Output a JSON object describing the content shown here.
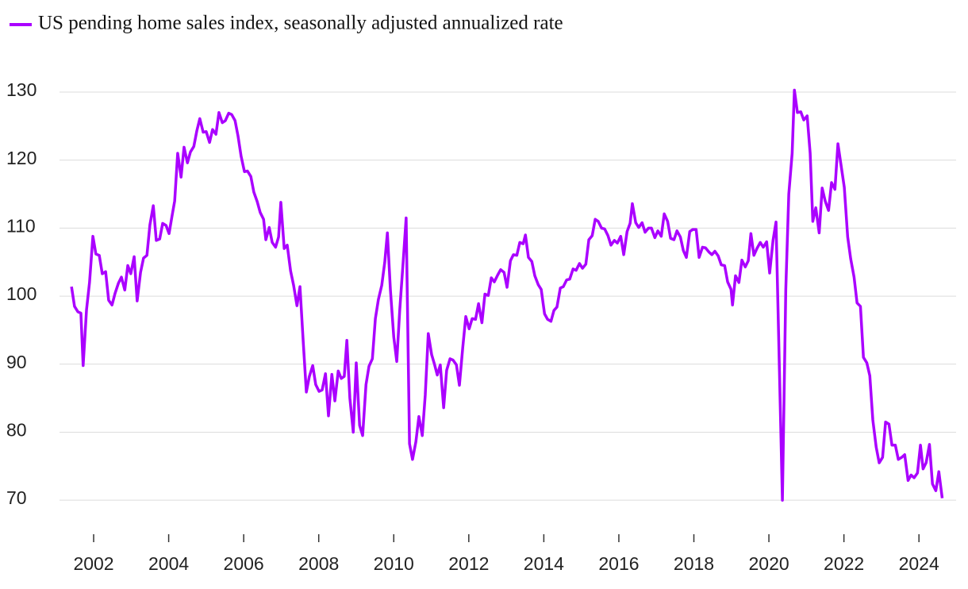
{
  "chart_data": {
    "type": "line",
    "xlim": [
      2001.09,
      2024.99
    ],
    "xticks": [
      2002,
      2004,
      2006,
      2008,
      2010,
      2012,
      2014,
      2016,
      2018,
      2020,
      2022,
      2024
    ],
    "ylim": [
      65,
      132
    ],
    "yticks": [
      70,
      80,
      90,
      100,
      110,
      120,
      130
    ],
    "grid": true,
    "x": [
      2001.41,
      2001.49,
      2001.58,
      2001.66,
      2001.72,
      2001.81,
      2001.89,
      2001.98,
      2002.06,
      2002.15,
      2002.23,
      2002.32,
      2002.4,
      2002.49,
      2002.57,
      2002.66,
      2002.74,
      2002.83,
      2002.91,
      2002.99,
      2003.08,
      2003.16,
      2003.25,
      2003.33,
      2003.42,
      2003.5,
      2003.59,
      2003.67,
      2003.76,
      2003.84,
      2003.93,
      2004.01,
      2004.09,
      2004.16,
      2004.24,
      2004.33,
      2004.41,
      2004.5,
      2004.58,
      2004.67,
      2004.75,
      2004.83,
      2004.92,
      2005.0,
      2005.09,
      2005.17,
      2005.26,
      2005.34,
      2005.43,
      2005.51,
      2005.6,
      2005.68,
      2005.77,
      2005.85,
      2005.93,
      2006.02,
      2006.1,
      2006.19,
      2006.27,
      2006.36,
      2006.44,
      2006.53,
      2006.59,
      2006.68,
      2006.76,
      2006.85,
      2006.93,
      2006.99,
      2007.08,
      2007.16,
      2007.25,
      2007.33,
      2007.42,
      2007.5,
      2007.59,
      2007.67,
      2007.75,
      2007.84,
      2007.92,
      2008.01,
      2008.09,
      2008.18,
      2008.26,
      2008.35,
      2008.43,
      2008.52,
      2008.6,
      2008.68,
      2008.75,
      2008.83,
      2008.92,
      2009.0,
      2009.09,
      2009.17,
      2009.26,
      2009.34,
      2009.43,
      2009.51,
      2009.59,
      2009.68,
      2009.76,
      2009.83,
      2009.91,
      2010.0,
      2010.08,
      2010.16,
      2010.25,
      2010.33,
      2010.42,
      2010.5,
      2010.59,
      2010.67,
      2010.76,
      2010.84,
      2010.92,
      2011.01,
      2011.09,
      2011.16,
      2011.24,
      2011.33,
      2011.41,
      2011.5,
      2011.58,
      2011.67,
      2011.75,
      2011.84,
      2011.92,
      2012.01,
      2012.09,
      2012.18,
      2012.26,
      2012.35,
      2012.43,
      2012.52,
      2012.6,
      2012.68,
      2012.77,
      2012.85,
      2012.94,
      2013.02,
      2013.11,
      2013.19,
      2013.28,
      2013.36,
      2013.45,
      2013.51,
      2013.59,
      2013.68,
      2013.76,
      2013.85,
      2013.93,
      2014.02,
      2014.1,
      2014.19,
      2014.27,
      2014.35,
      2014.44,
      2014.52,
      2014.61,
      2014.69,
      2014.78,
      2014.86,
      2014.95,
      2015.03,
      2015.12,
      2015.2,
      2015.29,
      2015.37,
      2015.45,
      2015.54,
      2015.62,
      2015.71,
      2015.79,
      2015.88,
      2015.96,
      2016.05,
      2016.13,
      2016.22,
      2016.3,
      2016.36,
      2016.45,
      2016.53,
      2016.62,
      2016.7,
      2016.79,
      2016.87,
      2016.96,
      2017.04,
      2017.13,
      2017.21,
      2017.3,
      2017.38,
      2017.47,
      2017.55,
      2017.64,
      2017.72,
      2017.8,
      2017.89,
      2017.97,
      2018.06,
      2018.14,
      2018.23,
      2018.31,
      2018.4,
      2018.48,
      2018.56,
      2018.65,
      2018.73,
      2018.82,
      2018.9,
      2018.99,
      2019.03,
      2019.11,
      2019.2,
      2019.28,
      2019.37,
      2019.45,
      2019.52,
      2019.6,
      2019.68,
      2019.77,
      2019.85,
      2019.94,
      2020.02,
      2020.11,
      2020.19,
      2020.36,
      2020.45,
      2020.53,
      2020.62,
      2020.68,
      2020.76,
      2020.85,
      2020.93,
      2021.02,
      2021.1,
      2021.17,
      2021.25,
      2021.34,
      2021.42,
      2021.5,
      2021.59,
      2021.67,
      2021.76,
      2021.84,
      2021.93,
      2022.01,
      2022.1,
      2022.18,
      2022.27,
      2022.35,
      2022.44,
      2022.52,
      2022.61,
      2022.69,
      2022.77,
      2022.86,
      2022.94,
      2023.03,
      2023.11,
      2023.2,
      2023.28,
      2023.37,
      2023.45,
      2023.54,
      2023.62,
      2023.71,
      2023.79,
      2023.87,
      2023.96,
      2024.04,
      2024.11,
      2024.19,
      2024.28,
      2024.36,
      2024.45,
      2024.53,
      2024.62
    ],
    "series": [
      {
        "name": "US pending home sales index, seasonally adjusted annualized rate",
        "color": "#aa00ff",
        "values": [
          101.4,
          98.5,
          97.7,
          97.5,
          89.8,
          98,
          102,
          108.8,
          106.2,
          106,
          103.3,
          103.6,
          99.4,
          98.7,
          100.4,
          101.9,
          102.8,
          100.9,
          104.5,
          103.3,
          105.8,
          99.3,
          103.5,
          105.6,
          106,
          110.5,
          113.3,
          108.2,
          108.4,
          110.7,
          110.4,
          109.2,
          111.8,
          114,
          121,
          117.5,
          121.9,
          119.6,
          121.2,
          122,
          124.3,
          126.1,
          124.1,
          124.2,
          122.6,
          124.5,
          123.8,
          127,
          125.5,
          125.8,
          126.9,
          126.7,
          125.8,
          123.5,
          120.6,
          118.3,
          118.4,
          117.6,
          115.3,
          113.9,
          112.3,
          111.3,
          108.3,
          110.1,
          107.9,
          107.2,
          108.7,
          113.8,
          107,
          107.5,
          103.7,
          101.6,
          98.6,
          101.4,
          93,
          85.9,
          88.2,
          89.8,
          87,
          86,
          86.2,
          88.6,
          82.4,
          88.5,
          84.6,
          89,
          87.9,
          88.2,
          93.5,
          85,
          80,
          90.2,
          81,
          79.5,
          87,
          89.7,
          90.8,
          96.7,
          99.5,
          101.6,
          105,
          109.3,
          101,
          94,
          90.4,
          98,
          105,
          111.5,
          78.3,
          76,
          78.6,
          82.3,
          79.5,
          85.5,
          94.5,
          91.4,
          89.9,
          88.4,
          89.9,
          83.6,
          89.1,
          90.8,
          90.6,
          89.9,
          86.9,
          92.5,
          97,
          95.2,
          96.7,
          96.6,
          98.9,
          96.1,
          100.3,
          100.1,
          102.7,
          102.1,
          103.1,
          103.9,
          103.5,
          101.3,
          105.2,
          106.1,
          106,
          107.9,
          107.7,
          109,
          105.7,
          105.1,
          103,
          101.7,
          101,
          97.4,
          96.6,
          96.3,
          97.9,
          98.4,
          101.2,
          101.4,
          102.4,
          102.5,
          104,
          103.8,
          104.8,
          104.1,
          104.7,
          108.3,
          108.9,
          111.3,
          111,
          110,
          109.9,
          108.9,
          107.5,
          108.2,
          107.8,
          108.8,
          106.1,
          109.5,
          110.7,
          113.6,
          110.8,
          110.1,
          110.8,
          109.4,
          110,
          110,
          108.6,
          109.6,
          108.8,
          112.1,
          111,
          108.5,
          108.3,
          109.6,
          108.7,
          106.7,
          105.7,
          109.5,
          109.8,
          109.8,
          105.7,
          107.2,
          107.1,
          106.5,
          106.1,
          106.6,
          105.9,
          104.6,
          104.5,
          102.1,
          101,
          98.7,
          103,
          102,
          105.3,
          104.3,
          105.2,
          109.2,
          106,
          107,
          107.9,
          107.2,
          108,
          103.4,
          108.2,
          110.9,
          70,
          101,
          115,
          121,
          130.3,
          127,
          127.1,
          125.9,
          126.5,
          121,
          111,
          113,
          109.3,
          115.9,
          114,
          112.6,
          116.7,
          115.7,
          122.4,
          119,
          116,
          108.7,
          105.5,
          102.8,
          99,
          98.5,
          91,
          90.2,
          88.3,
          81.8,
          77.8,
          75.5,
          76.3,
          81.5,
          81.2,
          78.1,
          78.1,
          76,
          76.3,
          76.7,
          72.9,
          73.7,
          73.3,
          74,
          78.1,
          74.6,
          75.5,
          78.2,
          72.4,
          71.4,
          74.2,
          70.3
        ]
      }
    ]
  }
}
